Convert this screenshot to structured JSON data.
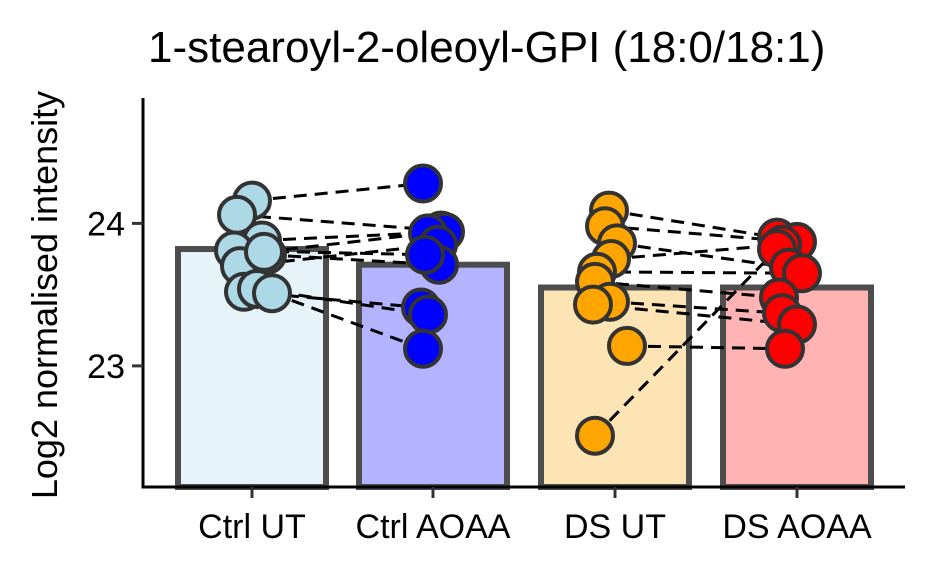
{
  "chart_data": {
    "type": "bar",
    "title": "1-stearoyl-2-oleoyl-GPI (18:0/18:1)",
    "xlabel": "",
    "ylabel": "Log2 normalised intensity",
    "ylim": [
      22.15,
      24.88
    ],
    "yticks": [
      23,
      24
    ],
    "grid": false,
    "legend": "none",
    "categories": [
      "Ctrl UT",
      "Ctrl AOAA",
      "DS UT",
      "DS AOAA"
    ],
    "values": [
      23.82,
      23.71,
      23.55,
      23.55
    ],
    "bar_fill_colors": [
      "#e6f3f9",
      "#b3b3ff",
      "#fde4b4",
      "#ffb3b3"
    ],
    "point_colors": [
      "#add8e6",
      "#0000ff",
      "#ffa500",
      "#ff0000"
    ],
    "bar_outline_color": "#4d4d4d",
    "points": [
      [
        24.16,
        24.06,
        23.88,
        23.81,
        23.7,
        23.78,
        23.52,
        23.8,
        23.54,
        23.51
      ],
      [
        24.28,
        23.95,
        23.94,
        23.93,
        23.85,
        23.71,
        23.78,
        23.41,
        23.36,
        23.12
      ],
      [
        24.09,
        23.98,
        23.86,
        23.75,
        23.66,
        23.59,
        23.45,
        23.43,
        23.14,
        22.51
      ],
      [
        23.9,
        23.87,
        23.85,
        23.82,
        23.69,
        23.65,
        23.48,
        23.37,
        23.29,
        23.12
      ]
    ],
    "pairs": [
      {
        "from": [
          0,
          0
        ],
        "to": [
          1,
          0
        ]
      },
      {
        "from": [
          0,
          1
        ],
        "to": [
          1,
          1
        ]
      },
      {
        "from": [
          0,
          2
        ],
        "to": [
          1,
          2
        ]
      },
      {
        "from": [
          0,
          3
        ],
        "to": [
          1,
          6
        ]
      },
      {
        "from": [
          0,
          4
        ],
        "to": [
          1,
          4
        ]
      },
      {
        "from": [
          0,
          5
        ],
        "to": [
          1,
          5
        ]
      },
      {
        "from": [
          0,
          6
        ],
        "to": [
          1,
          7
        ]
      },
      {
        "from": [
          0,
          7
        ],
        "to": [
          1,
          3
        ]
      },
      {
        "from": [
          0,
          8
        ],
        "to": [
          1,
          8
        ]
      },
      {
        "from": [
          0,
          9
        ],
        "to": [
          1,
          9
        ]
      },
      {
        "from": [
          2,
          0
        ],
        "to": [
          3,
          0
        ]
      },
      {
        "from": [
          2,
          1
        ],
        "to": [
          3,
          1
        ]
      },
      {
        "from": [
          2,
          2
        ],
        "to": [
          3,
          4
        ]
      },
      {
        "from": [
          2,
          3
        ],
        "to": [
          3,
          2
        ]
      },
      {
        "from": [
          2,
          4
        ],
        "to": [
          3,
          5
        ]
      },
      {
        "from": [
          2,
          5
        ],
        "to": [
          3,
          6
        ]
      },
      {
        "from": [
          2,
          6
        ],
        "to": [
          3,
          7
        ]
      },
      {
        "from": [
          2,
          7
        ],
        "to": [
          3,
          8
        ]
      },
      {
        "from": [
          2,
          8
        ],
        "to": [
          3,
          9
        ]
      },
      {
        "from": [
          2,
          9
        ],
        "to": [
          3,
          3
        ]
      }
    ]
  }
}
